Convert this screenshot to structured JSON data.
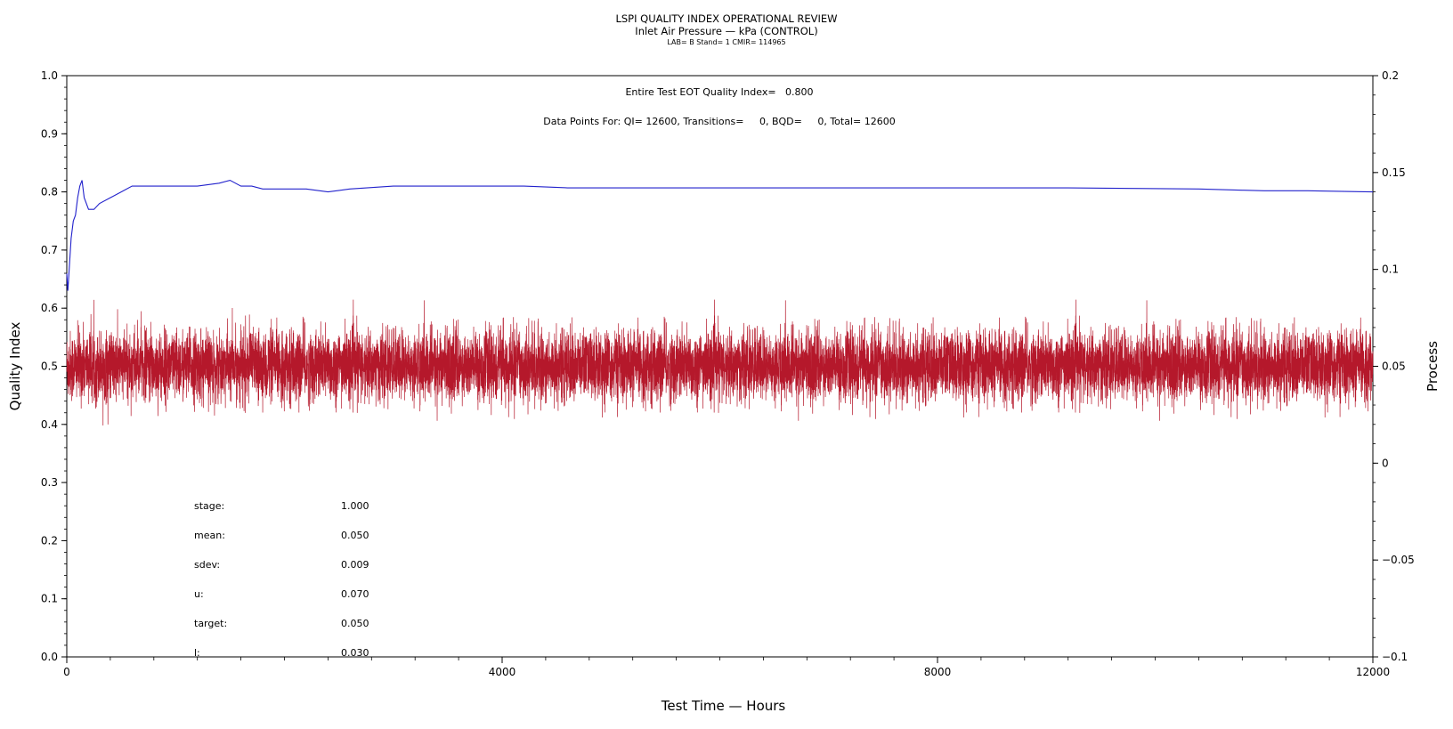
{
  "header": {
    "title": "LSPI QUALITY INDEX OPERATIONAL REVIEW",
    "subtitle": "Inlet Air Pressure — kPa (CONTROL)",
    "info": "LAB= B Stand= 1 CMIR= 114965"
  },
  "chart_data": {
    "type": "line",
    "xlabel": "Test Time — Hours",
    "ylabel": "Quality Index",
    "y2label": "Process",
    "xlim": [
      0,
      12000
    ],
    "ylim": [
      0.0,
      1.0
    ],
    "y2lim": [
      -0.1,
      0.2
    ],
    "xticks": [
      0,
      4000,
      8000,
      12000
    ],
    "xtick_labels": [
      "0",
      "4000",
      "8000",
      "12000"
    ],
    "yticks": [
      0.0,
      0.1,
      0.2,
      0.3,
      0.4,
      0.5,
      0.6,
      0.7,
      0.8,
      0.9,
      1.0
    ],
    "ytick_labels": [
      "0.0",
      "0.1",
      "0.2",
      "0.3",
      "0.4",
      "0.5",
      "0.6",
      "0.7",
      "0.8",
      "0.9",
      "1.0"
    ],
    "y2ticks": [
      -0.1,
      -0.05,
      0,
      0.05,
      0.1,
      0.15,
      0.2
    ],
    "y2tick_labels": [
      "−0.1",
      "−0.05",
      "0",
      "0.05",
      "0.1",
      "0.15",
      "0.2"
    ],
    "colors": {
      "quality_index": "#2222cc",
      "process": "#b5182b"
    },
    "series": [
      {
        "axis": "left",
        "x": [
          0,
          10,
          20,
          40,
          60,
          80,
          100,
          120,
          140,
          160,
          200,
          250,
          300,
          400,
          500,
          600,
          800,
          1000,
          1200,
          1400,
          1500,
          1600,
          1700,
          1800,
          2000,
          2200,
          2400,
          2600,
          3000,
          3400,
          3800,
          4200,
          4600,
          5000,
          5600,
          6000,
          6400,
          7000,
          7600,
          8000,
          8600,
          9200,
          9800,
          10400,
          10800,
          11000,
          11400,
          12000
        ],
        "values": [
          0.66,
          0.63,
          0.66,
          0.72,
          0.75,
          0.76,
          0.79,
          0.81,
          0.82,
          0.79,
          0.77,
          0.77,
          0.78,
          0.79,
          0.8,
          0.81,
          0.81,
          0.81,
          0.81,
          0.815,
          0.82,
          0.81,
          0.81,
          0.805,
          0.805,
          0.805,
          0.8,
          0.805,
          0.81,
          0.81,
          0.81,
          0.81,
          0.807,
          0.807,
          0.807,
          0.807,
          0.807,
          0.807,
          0.807,
          0.807,
          0.807,
          0.807,
          0.806,
          0.805,
          0.803,
          0.802,
          0.802,
          0.8
        ]
      },
      {
        "axis": "right",
        "mean": 0.05,
        "sdev": 0.009,
        "points": 12600
      }
    ],
    "annotations": [
      "Entire Test EOT Quality Index=   0.800",
      "Data Points For: QI= 12600, Transitions=     0, BQD=     0, Total= 12600"
    ],
    "stats": [
      {
        "label": "stage:",
        "value": "1.000"
      },
      {
        "label": "mean:",
        "value": "0.050"
      },
      {
        "label": "sdev:",
        "value": "0.009"
      },
      {
        "label": "u:",
        "value": "0.070"
      },
      {
        "label": "target:",
        "value": "0.050"
      },
      {
        "label": "l:",
        "value": "0.030"
      }
    ]
  }
}
